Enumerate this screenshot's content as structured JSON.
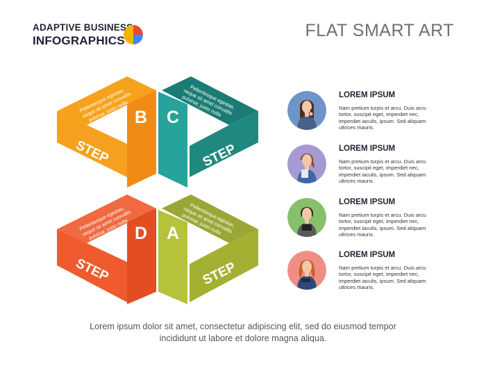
{
  "brand": {
    "line1": "ADAPTIVE BUSINESS",
    "line2": "INFOGRAPHICS",
    "logo_icon": "pie-logo-icon",
    "logo_colors": [
      "#e84a35",
      "#f4b400",
      "#4285f4",
      "#7cbb3a"
    ]
  },
  "title": "FLAT SMART ART",
  "diagram": {
    "steps": [
      {
        "letter": "A",
        "label": "STEP",
        "note": [
          "Pellentesque egestas,",
          "neque sit amet convallis",
          "pulvinar, justo nulla"
        ],
        "color_top": "#9aa635",
        "color_side": "#b5c23a",
        "color_front": "#a3b032"
      },
      {
        "letter": "B",
        "label": "STEP",
        "note": [
          "Pellentesque egestas,",
          "neque sit amet convallis",
          "pulvinar, justo nulla"
        ],
        "color_top": "#f7a21c",
        "color_side": "#f08b16",
        "color_front": "#f5a11f"
      },
      {
        "letter": "C",
        "label": "STEP",
        "note": [
          "Pellentesque egestas,",
          "neque sit amet convallis",
          "pulvinar, justo nulla"
        ],
        "color_top": "#1a7c74",
        "color_side": "#26a39a",
        "color_front": "#20897f"
      },
      {
        "letter": "D",
        "label": "STEP",
        "note": [
          "Pellentesque egestas,",
          "neque sit amet convallis",
          "pulvinar, justo nulla"
        ],
        "color_top": "#f06940",
        "color_side": "#e34d22",
        "color_front": "#ef5a2e"
      }
    ]
  },
  "items": [
    {
      "title": "LOREM IPSUM",
      "body": "Nam pretium turpis et arcu. Duis arcu tortor, suscipit eget, imperdiet nec, imperdiet iaculis, ipsum. Sed aliquam ultrices mauris.",
      "avatar_icon": "woman-phone-icon",
      "circle_color": "#6f94c9"
    },
    {
      "title": "LOREM IPSUM",
      "body": "Nam pretium turpis et arcu. Duis arcu tortor, suscipit eget, imperdiet nec, imperdiet iaculis, ipsum. Sed aliquam ultrices mauris.",
      "avatar_icon": "woman-folder-icon",
      "circle_color": "#a59ad1"
    },
    {
      "title": "LOREM IPSUM",
      "body": "Nam pretium turpis et arcu. Duis arcu tortor, suscipit eget, imperdiet nec, imperdiet iaculis, ipsum. Sed aliquam ultrices mauris.",
      "avatar_icon": "woman-tablet-icon",
      "circle_color": "#86c06a"
    },
    {
      "title": "LOREM IPSUM",
      "body": "Nam pretium turpis et arcu. Duis arcu tortor, suscipit eget, imperdiet nec, imperdiet iaculis, ipsum. Sed aliquam ultrices mauris.",
      "avatar_icon": "woman-notebook-icon",
      "circle_color": "#ef8f84"
    }
  ],
  "footer": {
    "line1": "Lorem ipsum dolor sit amet, consectetur adipiscing elit, sed do eiusmod tempor",
    "line2": "incididunt ut labore et dolore magna aliqua."
  }
}
